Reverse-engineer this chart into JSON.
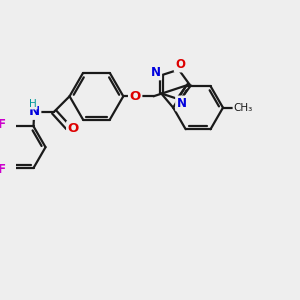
{
  "bg_color": "#eeeeee",
  "bond_color": "#1a1a1a",
  "bond_width": 1.6,
  "atom_colors": {
    "N": "#0000dd",
    "O": "#dd0000",
    "F": "#cc00cc",
    "H": "#009999",
    "C": "#1a1a1a"
  },
  "font_size": 8.5,
  "xlim": [
    0,
    10
  ],
  "ylim": [
    0,
    10
  ]
}
